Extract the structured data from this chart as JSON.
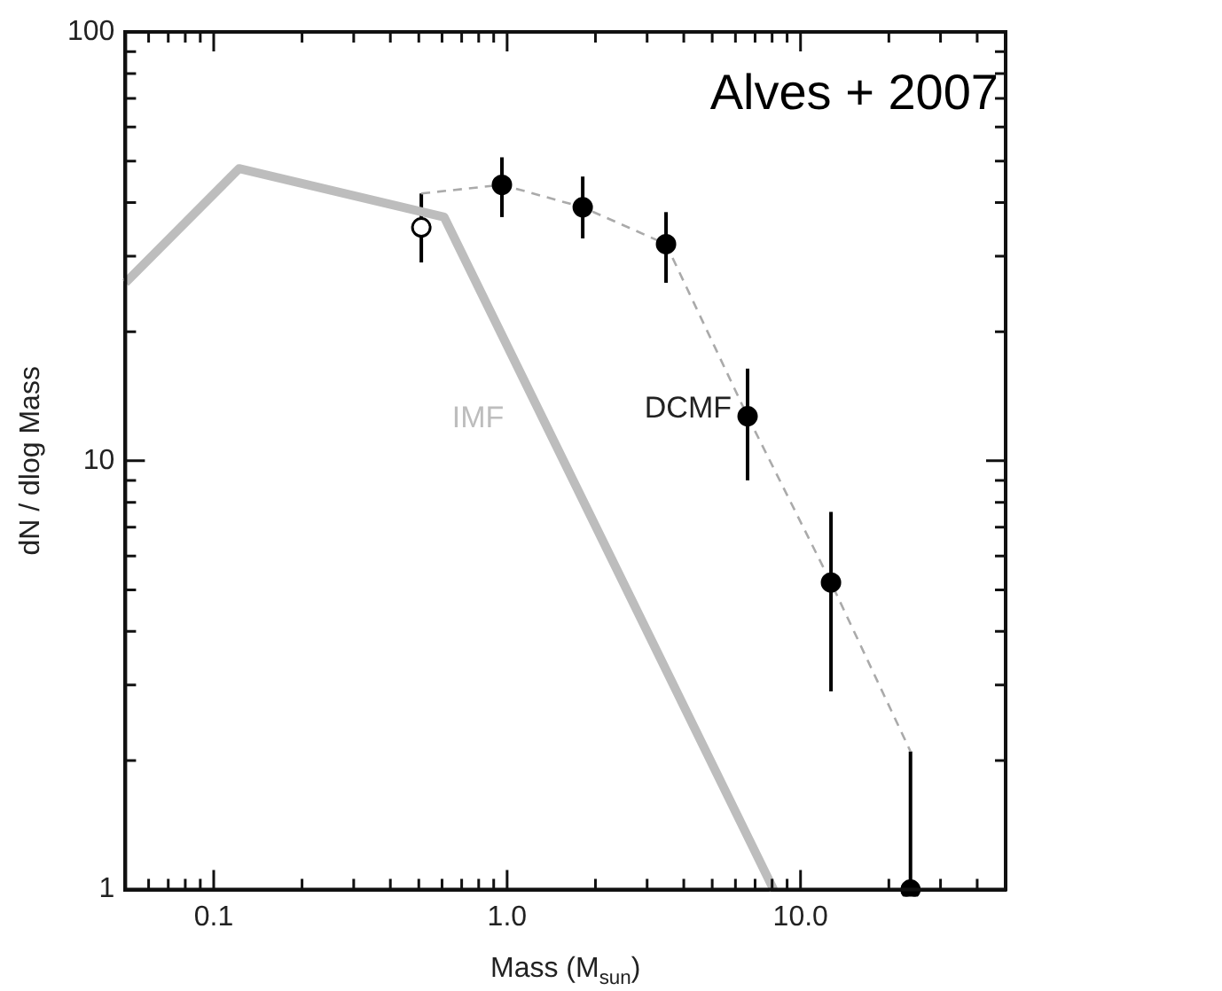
{
  "chart_data": {
    "type": "scatter",
    "log": "xy",
    "xlabel": "Mass (M$_{sun}$)",
    "ylabel": "dN / dlog Mass",
    "annotations": [
      "Alves + 2007"
    ],
    "xlim": [
      0.05,
      50
    ],
    "ylim": [
      1,
      100
    ],
    "xticks": [
      {
        "value": 0.06,
        "label": null
      },
      {
        "value": 0.07,
        "label": null
      },
      {
        "value": 0.08,
        "label": null
      },
      {
        "value": 0.09,
        "label": null
      },
      0.1,
      {
        "value": 0.2,
        "label": null
      },
      {
        "value": 0.3,
        "label": null
      },
      {
        "value": 0.4,
        "label": null
      },
      {
        "value": 0.5,
        "label": null
      },
      {
        "value": 0.6,
        "label": null
      },
      {
        "value": 0.7,
        "label": null
      },
      {
        "value": 0.8,
        "label": null
      },
      {
        "value": 0.9,
        "label": null
      },
      {
        "value": 1,
        "label": "1.0"
      },
      {
        "value": 2,
        "label": null
      },
      {
        "value": 3,
        "label": null
      },
      {
        "value": 4,
        "label": null
      },
      {
        "value": 5,
        "label": null
      },
      {
        "value": 6,
        "label": null
      },
      {
        "value": 7,
        "label": null
      },
      {
        "value": 8,
        "label": null
      },
      {
        "value": 9,
        "label": null
      },
      {
        "value": 10,
        "label": "10.0"
      },
      {
        "value": 20,
        "label": null
      },
      {
        "value": 30,
        "label": null
      },
      {
        "value": 40,
        "label": null
      }
    ],
    "yticks": [
      1,
      {
        "value": 2,
        "label": null
      },
      {
        "value": 3,
        "label": null
      },
      {
        "value": 4,
        "label": null
      },
      {
        "value": 5,
        "label": null
      },
      {
        "value": 6,
        "label": null
      },
      {
        "value": 7,
        "label": null
      },
      {
        "value": 8,
        "label": null
      },
      {
        "value": 9,
        "label": null
      },
      10,
      {
        "value": 20,
        "label": null
      },
      {
        "value": 30,
        "label": null
      },
      {
        "value": 40,
        "label": null
      },
      {
        "value": 50,
        "label": null
      },
      {
        "value": 60,
        "label": null
      },
      {
        "value": 70,
        "label": null
      },
      {
        "value": 80,
        "label": null
      },
      {
        "value": 90,
        "label": null
      },
      100
    ],
    "legend": false,
    "marker": "circle",
    "series": [
      {
        "name": "IMF",
        "type": "line",
        "marker": "none",
        "color": "#bdbdbd",
        "x": [
          0.05,
          0.122,
          0.61,
          8.1
        ],
        "values": [
          26,
          48,
          37,
          1
        ]
      },
      {
        "type": "line",
        "line_style": "dashed",
        "marker": "none",
        "color": "#aaaaaa",
        "x": [
          0.51,
          0.96,
          1.81,
          3.48,
          6.6,
          12.7,
          23.7
        ],
        "values": [
          42,
          44,
          39,
          32,
          12.7,
          5.2,
          2.1
        ]
      },
      {
        "name": "DCMF",
        "color": "#000000",
        "colors": [
          "#ffffff",
          "#000000",
          "#000000",
          "#000000",
          "#000000",
          "#000000",
          "#000000"
        ],
        "x": [
          0.51,
          0.96,
          1.81,
          3.48,
          6.6,
          12.7,
          23.7
        ],
        "values": [
          35,
          44,
          39,
          32,
          12.7,
          5.2,
          1
        ],
        "errors": [
          [
            29,
            42
          ],
          [
            37,
            51
          ],
          [
            33,
            46
          ],
          [
            26,
            38
          ],
          [
            9,
            16.4
          ],
          [
            2.9,
            7.6
          ],
          [
            1,
            2.1
          ]
        ]
      }
    ]
  }
}
